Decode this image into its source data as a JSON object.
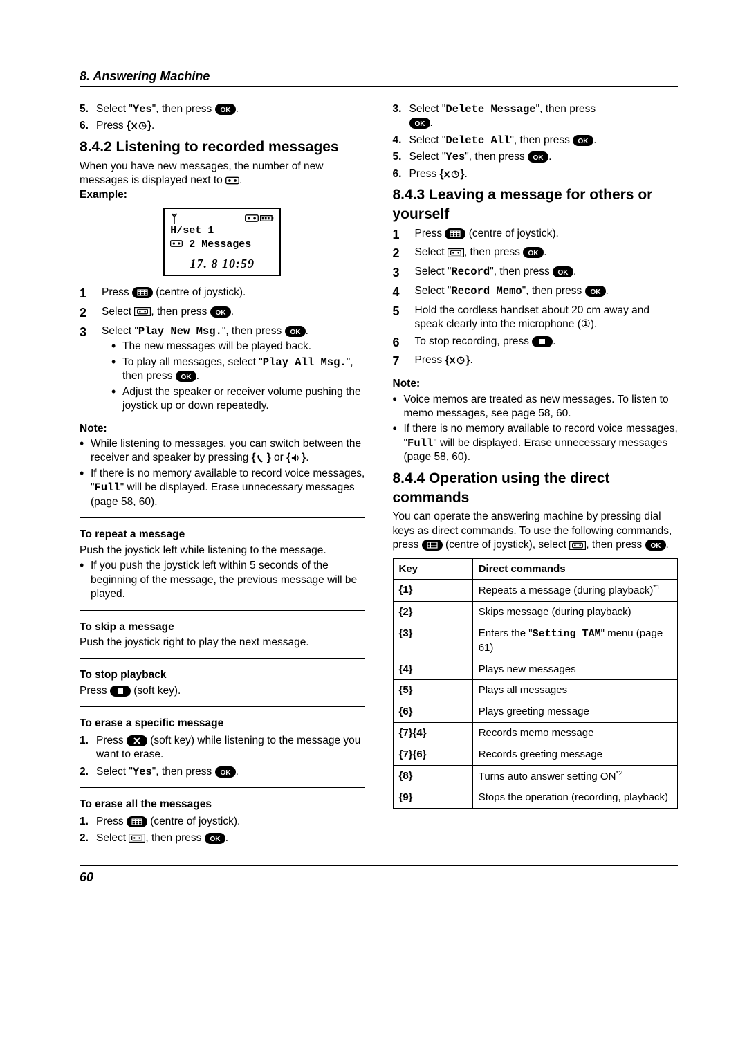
{
  "header": "8. Answering Machine",
  "page_num": "60",
  "left": {
    "s5_pre": "Select \"",
    "s5_mono": "Yes",
    "s5_post": "\", then press ",
    "s6_pre": "Press ",
    "h842": "8.4.2 Listening to recorded messages",
    "intro_842a": "When you have new messages, the number of new messages is displayed next to ",
    "intro_842b": ".",
    "example": "Example:",
    "disp_line1": "H/set 1",
    "disp_line2": "2 Messages",
    "disp_date": "17. 8  10:59",
    "l1_pre": "Press ",
    "l1_post": " (centre of joystick).",
    "l2_pre": "Select ",
    "l2_mid": ", then press ",
    "l2_post": ".",
    "l3_pre": "Select \"",
    "l3_mono": "Play New Msg.",
    "l3_mid": "\", then press ",
    "l3_post": ".",
    "l3_b1": "The new messages will be played back.",
    "l3_b2a": "To play all messages, select \"",
    "l3_b2_mono": "Play All Msg.",
    "l3_b2b": "\", then press ",
    "l3_b2c": ".",
    "l3_b3": "Adjust the speaker or receiver volume pushing the joystick up or down repeatedly.",
    "note": "Note:",
    "n1a": "While listening to messages, you can switch between the receiver and speaker by pressing ",
    "n1b": " or ",
    "n1c": ".",
    "n2a": "If there is no memory available to record voice messages, \"",
    "n2_mono": "Full",
    "n2b": "\" will be displayed. Erase unnecessary messages (page 58, 60).",
    "repeat_h": "To repeat a message",
    "repeat_body": "Push the joystick left while listening to the message.",
    "repeat_b1": "If you push the joystick left within 5 seconds of the beginning of the message, the previous message will be played.",
    "skip_h": "To skip a message",
    "skip_body": "Push the joystick right to play the next message.",
    "stop_h": "To stop playback",
    "stop_pre": "Press ",
    "stop_post": " (soft key).",
    "erase1_h": "To erase a specific message",
    "e1_1a": "Press ",
    "e1_1b": " (soft key) while listening to the message you want to erase.",
    "e1_2a": "Select \"",
    "e1_2_mono": "Yes",
    "e1_2b": "\", then press ",
    "e1_2c": ".",
    "eraseall_h": "To erase all the messages",
    "ea_1a": "Press ",
    "ea_1b": " (centre of joystick).",
    "ea_2a": "Select ",
    "ea_2b": ", then press ",
    "ea_2c": "."
  },
  "right": {
    "r3a": "Select \"",
    "r3_mono": "Delete Message",
    "r3b": "\", then press ",
    "r4a": "Select \"",
    "r4_mono": "Delete All",
    "r4b": "\", then press ",
    "r4c": ".",
    "r5a": "Select \"",
    "r5_mono": "Yes",
    "r5b": "\", then press ",
    "r5c": ".",
    "r6a": "Press ",
    "h843": "8.4.3 Leaving a message for others or yourself",
    "m1a": "Press ",
    "m1b": " (centre of joystick).",
    "m2a": "Select ",
    "m2b": ", then press ",
    "m2c": ".",
    "m3a": "Select \"",
    "m3_mono": "Record",
    "m3b": "\", then press ",
    "m3c": ".",
    "m4a": "Select \"",
    "m4_mono": "Record Memo",
    "m4b": "\", then press ",
    "m4c": ".",
    "m5": "Hold the cordless handset about 20 cm away and speak clearly into the microphone (①).",
    "m6a": "To stop recording, press ",
    "m6b": ".",
    "m7a": "Press ",
    "note": "Note:",
    "nn1": "Voice memos are treated as new messages. To listen to memo messages, see page 58, 60.",
    "nn2a": "If there is no memory available to record voice messages, \"",
    "nn2_mono": "Full",
    "nn2b": "\" will be displayed. Erase unnecessary messages (page 58, 60).",
    "h844": "8.4.4 Operation using the direct commands",
    "intro_844a": "You can operate the answering machine by pressing dial keys as direct commands. To use the following commands, press ",
    "intro_844b": " (centre of joystick), select ",
    "intro_844c": ", then press ",
    "intro_844d": ".",
    "th_key": "Key",
    "th_cmd": "Direct commands",
    "rows": [
      {
        "k": "{1}",
        "c": "Repeats a message (during playback)",
        "sup": "*1"
      },
      {
        "k": "{2}",
        "c": "Skips message (during playback)"
      },
      {
        "k": "{3}",
        "c_pre": "Enters the \"",
        "c_mono": "Setting TAM",
        "c_post": "\" menu (page 61)"
      },
      {
        "k": "{4}",
        "c": "Plays new messages"
      },
      {
        "k": "{5}",
        "c": "Plays all messages"
      },
      {
        "k": "{6}",
        "c": "Plays greeting message"
      },
      {
        "k": "{7}{4}",
        "c": "Records memo message"
      },
      {
        "k": "{7}{6}",
        "c": "Records greeting message"
      },
      {
        "k": "{8}",
        "c": "Turns auto answer setting ON",
        "sup": "*2"
      },
      {
        "k": "{9}",
        "c": "Stops the operation (recording, playback)"
      }
    ]
  }
}
